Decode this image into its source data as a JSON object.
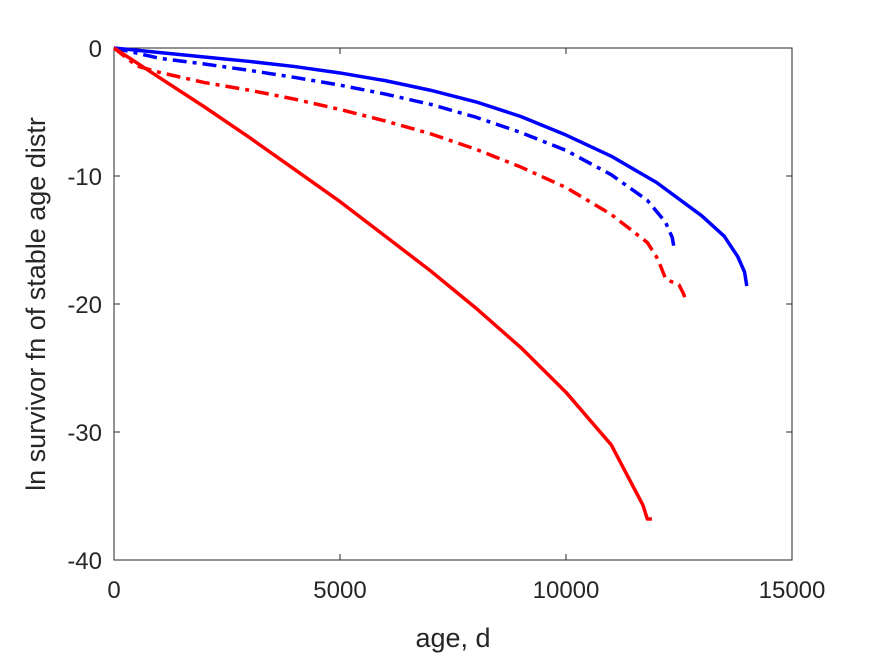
{
  "chart_data": {
    "type": "line",
    "xlabel": "age, d",
    "ylabel": "ln survivor fn of stable age distr",
    "xlim": [
      0,
      15000
    ],
    "ylim": [
      -40,
      0
    ],
    "xticks": [
      0,
      5000,
      10000,
      15000
    ],
    "yticks": [
      -40,
      -30,
      -20,
      -10,
      0
    ],
    "grid": false,
    "legend": "none",
    "series": [
      {
        "color": "#0000ff",
        "style": "solid",
        "x": [
          0,
          1000,
          2000,
          3000,
          4000,
          5000,
          6000,
          7000,
          8000,
          9000,
          10000,
          11000,
          12000,
          13000,
          13500,
          13800,
          13950,
          14000
        ],
        "y": [
          0,
          -0.35,
          -0.7,
          -1.05,
          -1.45,
          -1.95,
          -2.55,
          -3.3,
          -4.2,
          -5.35,
          -6.8,
          -8.45,
          -10.5,
          -13.1,
          -14.7,
          -16.3,
          -17.5,
          -18.6
        ]
      },
      {
        "color": "#0000ff",
        "style": "dashdot",
        "x": [
          0,
          1000,
          2000,
          3000,
          4000,
          5000,
          6000,
          7000,
          8000,
          9000,
          10000,
          11000,
          11800,
          12200,
          12350,
          12400
        ],
        "y": [
          0,
          -0.8,
          -1.25,
          -1.75,
          -2.3,
          -2.9,
          -3.6,
          -4.4,
          -5.4,
          -6.6,
          -8.0,
          -9.9,
          -11.9,
          -13.6,
          -14.8,
          -15.8
        ]
      },
      {
        "color": "#ff0000",
        "style": "dashdot",
        "x": [
          0,
          500,
          1000,
          2000,
          3000,
          4000,
          5000,
          6000,
          7000,
          8000,
          9000,
          10000,
          11000,
          11800,
          12000,
          12100,
          12200,
          12300,
          12500,
          12600,
          12650
        ],
        "y": [
          0,
          -1.4,
          -1.9,
          -2.7,
          -3.3,
          -4.0,
          -4.8,
          -5.7,
          -6.7,
          -7.9,
          -9.3,
          -10.9,
          -13.0,
          -15.2,
          -16.3,
          -17.1,
          -18.0,
          -18.2,
          -18.5,
          -19.2,
          -19.7
        ]
      },
      {
        "color": "#ff0000",
        "style": "solid",
        "x": [
          0,
          1000,
          2000,
          3000,
          4000,
          5000,
          6000,
          7000,
          8000,
          9000,
          10000,
          11000,
          11700,
          11800,
          11900
        ],
        "y": [
          0,
          -2.3,
          -4.6,
          -7.0,
          -9.5,
          -12.0,
          -14.7,
          -17.4,
          -20.3,
          -23.4,
          -26.9,
          -31.0,
          -35.7,
          -36.8,
          -36.8
        ]
      }
    ]
  }
}
